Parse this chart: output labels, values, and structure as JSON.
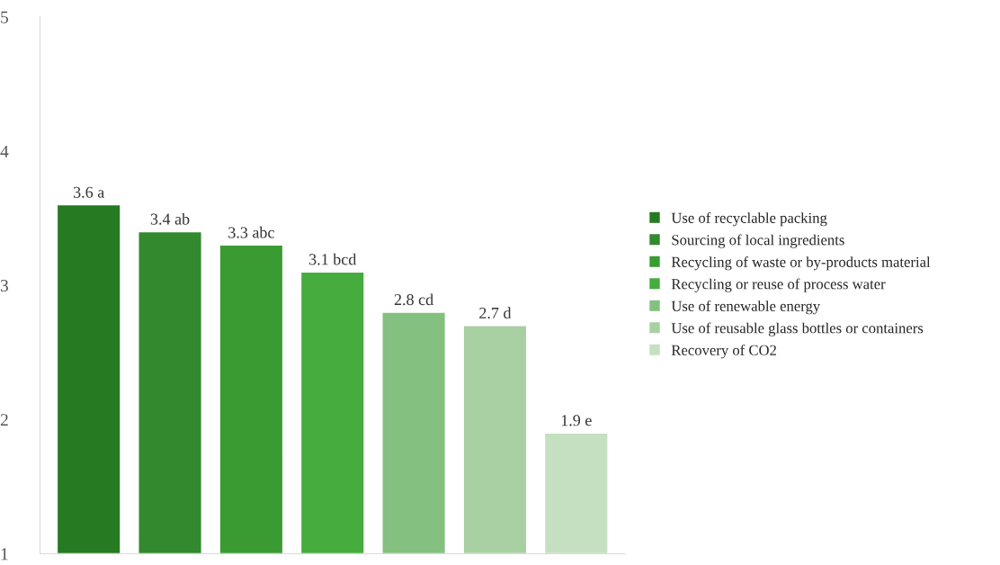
{
  "chart_data": {
    "type": "bar",
    "categories": [
      null,
      null,
      null,
      null,
      null,
      null,
      null
    ],
    "series": [
      {
        "name": "Use of recyclable packing",
        "color": "#267a21",
        "values": [
          3.6,
          null,
          null,
          null,
          null,
          null,
          null
        ],
        "value_labels": [
          "3.6 a",
          null,
          null,
          null,
          null,
          null,
          null
        ]
      },
      {
        "name": "Sourcing of local ingredients",
        "color": "#33892d",
        "values": [
          null,
          3.4,
          null,
          null,
          null,
          null,
          null
        ],
        "value_labels": [
          null,
          "3.4 ab",
          null,
          null,
          null,
          null,
          null
        ]
      },
      {
        "name": "Recycling of waste or by-products material",
        "color": "#3a9b33",
        "values": [
          null,
          null,
          3.3,
          null,
          null,
          null,
          null
        ],
        "value_labels": [
          null,
          null,
          "3.3 abc",
          null,
          null,
          null,
          null
        ]
      },
      {
        "name": "Recycling or reuse of process water",
        "color": "#45ac3d",
        "values": [
          null,
          null,
          null,
          3.1,
          null,
          null,
          null
        ],
        "value_labels": [
          null,
          null,
          null,
          "3.1 bcd",
          null,
          null,
          null
        ]
      },
      {
        "name": "Use of renewable energy",
        "color": "#84c07f",
        "values": [
          null,
          null,
          null,
          null,
          2.8,
          null,
          null
        ],
        "value_labels": [
          null,
          null,
          null,
          null,
          "2.8 cd",
          null,
          null
        ]
      },
      {
        "name": "Use of reusable glass bottles or containers",
        "color": "#a8d0a2",
        "values": [
          null,
          null,
          null,
          null,
          null,
          2.7,
          null
        ],
        "value_labels": [
          null,
          null,
          null,
          null,
          null,
          "2.7 d",
          null
        ]
      },
      {
        "name": "Recovery of CO2",
        "color": "#c5e0c0",
        "values": [
          null,
          null,
          null,
          null,
          null,
          null,
          1.9
        ],
        "value_labels": [
          null,
          null,
          null,
          null,
          null,
          null,
          "1.9 e"
        ]
      }
    ],
    "ylim": [
      1,
      5
    ],
    "yticks": [
      1,
      2,
      3,
      4,
      5
    ],
    "grid": false,
    "legend": "right"
  }
}
